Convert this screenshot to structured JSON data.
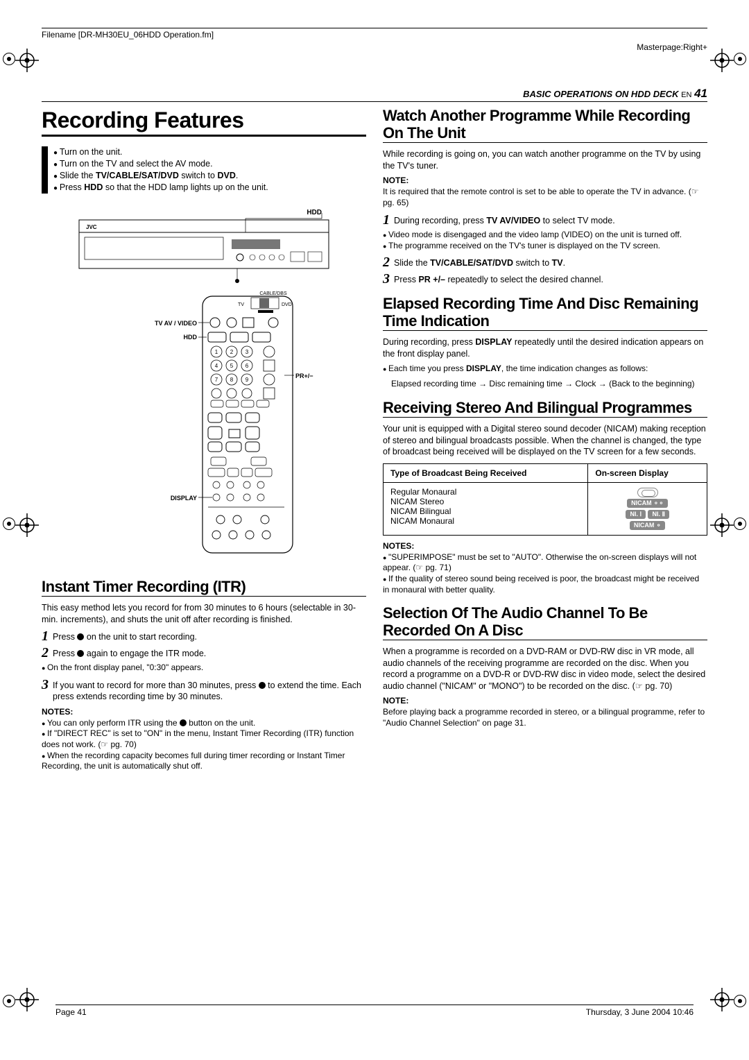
{
  "meta": {
    "filename": "Filename [DR-MH30EU_06HDD Operation.fm]",
    "masterpage": "Masterpage:Right+",
    "section": "BASIC OPERATIONS ON HDD DECK",
    "lang": "EN",
    "pagenum": "41",
    "footer_page": "Page 41",
    "footer_date": "Thursday, 3 June 2004  10:46"
  },
  "left": {
    "title": "Recording Features",
    "prelist": [
      "Turn on the unit.",
      "Turn on the TV and select the AV mode.",
      "Slide the <b>TV/CABLE/SAT/DVD</b> switch to <b>DVD</b>.",
      "Press <b>HDD</b> so that the HDD lamp lights up on the unit."
    ],
    "diagram_labels": {
      "hdd_top": "HDD",
      "tvav": "TV AV / VIDEO",
      "hdd": "HDD",
      "pr": "PR+/−",
      "display": "DISPLAY",
      "tv": "TV",
      "dvd": "DVD",
      "cable": "CABLE/DBS"
    },
    "itr_title": "Instant Timer Recording (ITR)",
    "itr_intro": "This easy method lets you record for from 30 minutes to 6 hours (selectable in 30-min. increments), and shuts the unit off after recording is finished.",
    "itr_steps": [
      "Press ● on the unit to start recording.",
      "Press ● again to engage the ITR mode.",
      "If you want to record for more than 30 minutes, press ● to extend the time. Each press extends recording time by 30 minutes."
    ],
    "itr_step2_sub": "On the front display panel, \"0:30\" appears.",
    "itr_notes_label": "NOTES:",
    "itr_notes": [
      "You can only perform ITR using the ● button on the unit.",
      "If \"DIRECT REC\" is set to \"ON\" in the menu, Instant Timer Recording (ITR) function does not work. (☞ pg. 70)",
      "When the recording capacity becomes full during timer recording or Instant Timer Recording, the unit is automatically shut off."
    ]
  },
  "right": {
    "watch_title": "Watch Another Programme While Recording On The Unit",
    "watch_body": "While recording is going on, you can watch another programme on the TV by using the TV's tuner.",
    "watch_note_label": "NOTE:",
    "watch_note": "It is required that the remote control is set to be able to operate the TV in advance. (☞ pg. 65)",
    "watch_steps": [
      "During recording, press <b>TV AV/VIDEO</b> to select TV mode.",
      "Slide the <b>TV/CABLE/SAT/DVD</b> switch to <b>TV</b>.",
      "Press <b>PR +/–</b> repeatedly to select the desired channel."
    ],
    "watch_step1_subs": [
      "Video mode is disengaged and the video lamp (VIDEO) on the unit is turned off.",
      "The programme received on the TV's tuner is displayed on the TV screen."
    ],
    "elapsed_title": "Elapsed Recording Time And Disc Remaining Time Indication",
    "elapsed_body": "During recording, press <b>DISPLAY</b> repeatedly until the desired indication appears on the front display panel.",
    "elapsed_sub": "Each time you press <b>DISPLAY</b>, the time indication changes as follows:",
    "elapsed_flow": "Elapsed recording time → Disc remaining time → Clock → (Back to the beginning)",
    "stereo_title": "Receiving Stereo And Bilingual Programmes",
    "stereo_body": "Your unit is equipped with a Digital stereo sound decoder (NICAM) making reception of stereo and bilingual broadcasts possible. When the channel is changed, the type of broadcast being received will be displayed on the TV screen for a few seconds.",
    "table": {
      "header1": "Type of Broadcast Being Received",
      "header2": "On-screen Display",
      "rows": [
        {
          "t": "Regular Monaural",
          "d": "mono"
        },
        {
          "t": "NICAM Stereo",
          "d": "nicam_stereo"
        },
        {
          "t": "NICAM Bilingual",
          "d": "nicam_bi"
        },
        {
          "t": "NICAM Monaural",
          "d": "nicam_mono"
        }
      ]
    },
    "stereo_notes_label": "NOTES:",
    "stereo_notes": [
      "\"SUPERIMPOSE\" must be set to \"AUTO\". Otherwise the on-screen displays will not appear. (☞ pg. 71)",
      "If the quality of stereo sound being received is poor, the broadcast might be received in monaural with better quality."
    ],
    "audio_title": "Selection Of The Audio Channel To Be Recorded On A Disc",
    "audio_body": "When a programme is recorded on a DVD-RAM or DVD-RW disc in VR mode, all audio channels of the receiving programme are recorded on the disc. When you record a programme on a DVD-R or DVD-RW disc in video mode, select the desired audio channel (\"NICAM\" or \"MONO\") to be recorded on the disc. (☞ pg. 70)",
    "audio_note_label": "NOTE:",
    "audio_note": "Before playing back a programme recorded in stereo, or a bilingual programme, refer to \"Audio Channel Selection\" on page 31."
  }
}
